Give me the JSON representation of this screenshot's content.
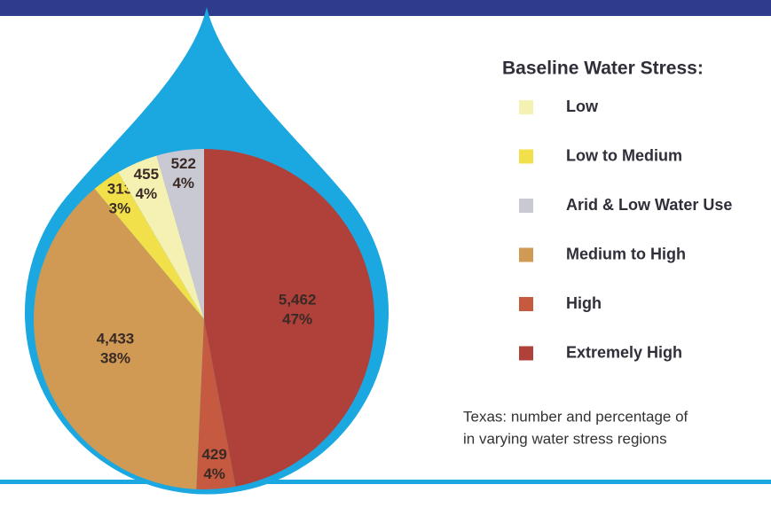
{
  "chart_data": {
    "type": "pie",
    "legend_title": "Baseline Water Stress:",
    "caption": [
      "Texas: number and percentage of",
      "in varying water stress regions"
    ],
    "slices": [
      {
        "name": "Extremely High",
        "color": "#b0403a",
        "value": 5462,
        "value_label": "5,462",
        "percent": 47,
        "percent_label": "47%"
      },
      {
        "name": "High",
        "color": "#c55a40",
        "value": 429,
        "value_label": "429",
        "percent": 4,
        "percent_label": "4%"
      },
      {
        "name": "Medium to High",
        "color": "#d09a55",
        "value": 4433,
        "value_label": "4,433",
        "percent": 38,
        "percent_label": "38%"
      },
      {
        "name": "Low to Medium",
        "color": "#f1e04a",
        "value": 313,
        "value_label": "313",
        "percent": 3,
        "percent_label": "3%"
      },
      {
        "name": "Low",
        "color": "#f5f1b3",
        "value": 455,
        "value_label": "455",
        "percent": 4,
        "percent_label": "4%"
      },
      {
        "name": "Arid & Low Water Use",
        "color": "#c9c9d3",
        "value": 522,
        "value_label": "522",
        "percent": 4,
        "percent_label": "4%"
      }
    ],
    "start_angle": "top",
    "direction": "clockwise"
  }
}
